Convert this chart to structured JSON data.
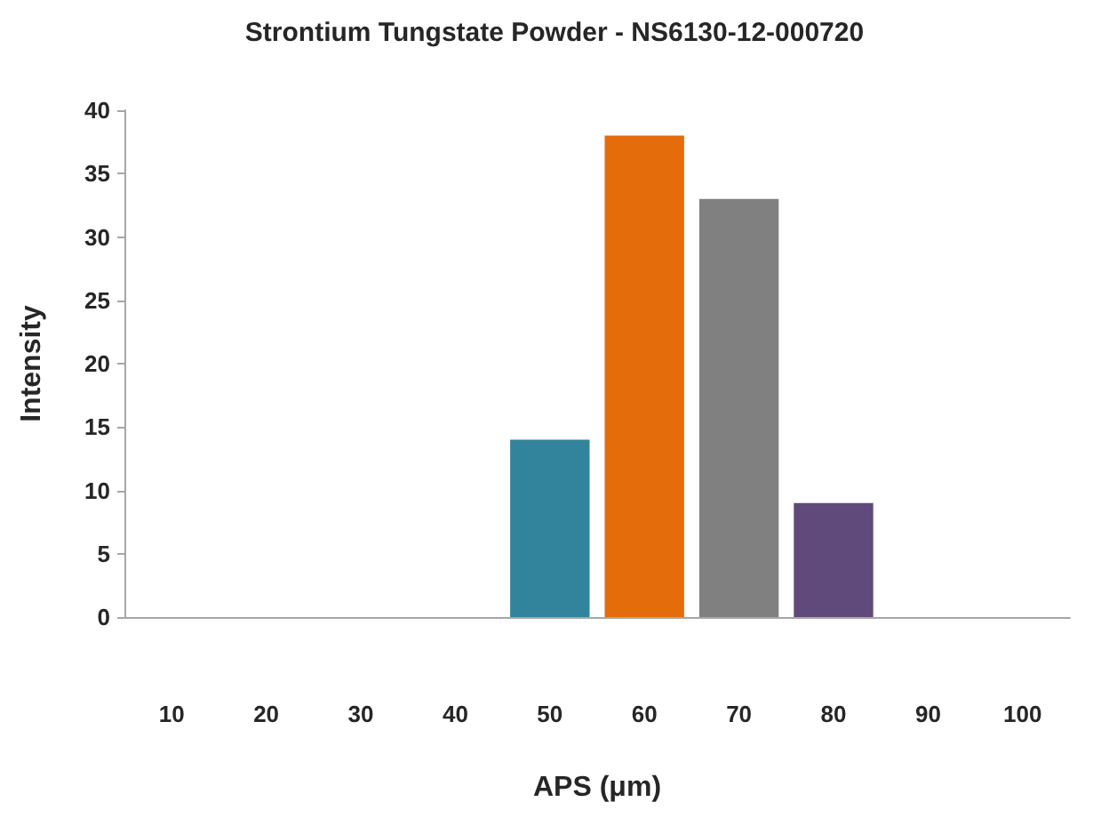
{
  "chart_data": {
    "type": "bar",
    "title": "Strontium Tungstate Powder - NS6130-12-000720",
    "xlabel": "APS (μm)",
    "ylabel": "Intensity",
    "categories": [
      "10",
      "20",
      "30",
      "40",
      "50",
      "60",
      "70",
      "80",
      "90",
      "100"
    ],
    "values": [
      0,
      0,
      0,
      0,
      14,
      38,
      33,
      9,
      0,
      0
    ],
    "colors": [
      "#6e7f4f",
      "#505050",
      "#65557f",
      "#2a4a78",
      "#31849b",
      "#e46c0a",
      "#808080",
      "#604a7b",
      "#6e7f4f",
      "#2e7d6e"
    ],
    "ylim": [
      0,
      40
    ],
    "yticks": [
      0,
      5,
      10,
      15,
      20,
      25,
      30,
      35,
      40
    ],
    "grid": false
  }
}
